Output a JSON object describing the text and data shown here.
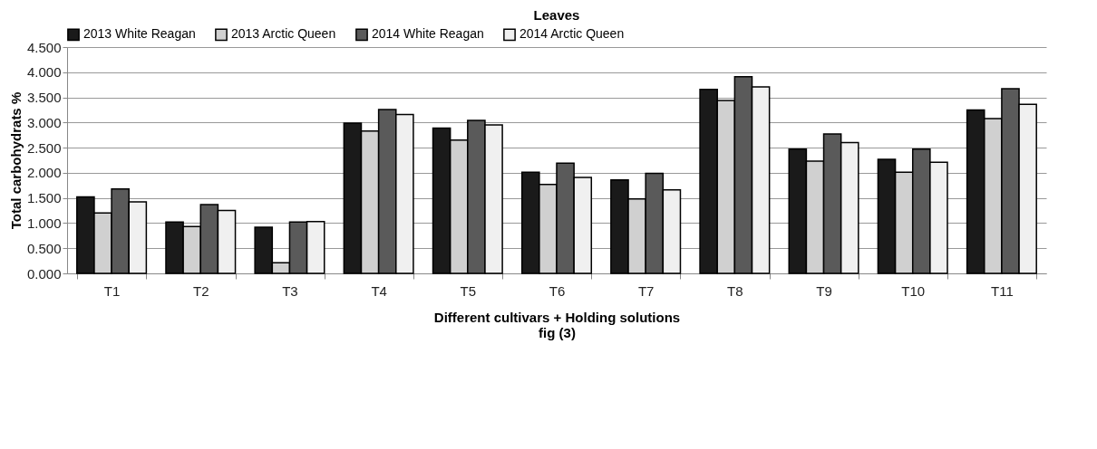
{
  "chart_data": {
    "type": "bar",
    "title": "Leaves",
    "xlabel": "Different cultivars + Holding solutions",
    "ylabel": "Total carbohydrats %",
    "annotations": [
      "fig (3)"
    ],
    "categories": [
      "T1",
      "T2",
      "T3",
      "T4",
      "T5",
      "T6",
      "T7",
      "T8",
      "T9",
      "T10",
      "T11"
    ],
    "series": [
      {
        "name": "2013 White Reagan",
        "color": "#1a1a1a",
        "values": [
          1.52,
          1.02,
          0.92,
          2.99,
          2.89,
          2.01,
          1.86,
          3.66,
          2.47,
          2.27,
          3.25
        ]
      },
      {
        "name": "2013 Arctic Queen",
        "color": "#d0d0d0",
        "values": [
          1.2,
          0.93,
          0.21,
          2.83,
          2.65,
          1.77,
          1.48,
          3.44,
          2.23,
          2.01,
          3.08
        ]
      },
      {
        "name": "2014 White Reagan",
        "color": "#5a5a5a",
        "values": [
          1.68,
          1.37,
          1.02,
          3.26,
          3.04,
          2.19,
          1.99,
          3.91,
          2.77,
          2.47,
          3.67
        ]
      },
      {
        "name": "2014 Arctic Queen",
        "color": "#f0f0f0",
        "values": [
          1.42,
          1.25,
          1.03,
          3.16,
          2.95,
          1.91,
          1.66,
          3.71,
          2.6,
          2.21,
          3.36
        ]
      }
    ],
    "ylim": [
      0,
      4.5
    ],
    "yticks": [
      {
        "value": 0,
        "label": "0.000"
      },
      {
        "value": 0.5,
        "label": "0.500"
      },
      {
        "value": 1,
        "label": "1.000"
      },
      {
        "value": 1.5,
        "label": "1.500"
      },
      {
        "value": 2,
        "label": "2.000"
      },
      {
        "value": 2.5,
        "label": "2.500"
      },
      {
        "value": 3,
        "label": "3.000"
      },
      {
        "value": 3.5,
        "label": "3.500"
      },
      {
        "value": 4,
        "label": "4.000"
      },
      {
        "value": 4.5,
        "label": "4.500"
      }
    ],
    "grid": "y",
    "legend": "top"
  }
}
